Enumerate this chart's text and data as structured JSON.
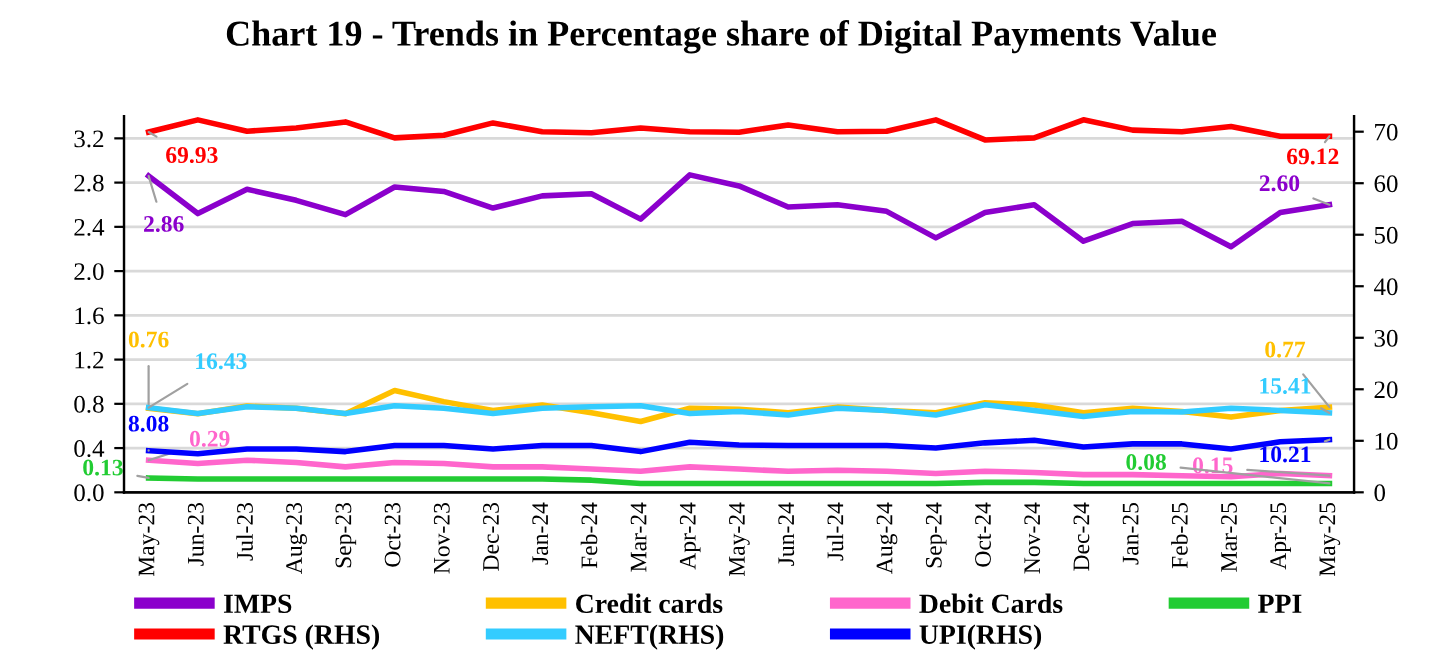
{
  "chart_data": {
    "type": "line",
    "title": "Chart 19 - Trends in Percentage share of Digital Payments Value",
    "categories": [
      "May-23",
      "Jun-23",
      "Jul-23",
      "Aug-23",
      "Sep-23",
      "Oct-23",
      "Nov-23",
      "Dec-23",
      "Jan-24",
      "Feb-24",
      "Mar-24",
      "Apr-24",
      "May-24",
      "Jun-24",
      "Jul-24",
      "Aug-24",
      "Sep-24",
      "Oct-24",
      "Nov-24",
      "Dec-24",
      "Jan-25",
      "Feb-25",
      "Mar-25",
      "Apr-25",
      "May-25"
    ],
    "series": [
      {
        "name": "IMPS",
        "color": "#8b00cc",
        "values": [
          2.86,
          2.52,
          2.74,
          2.64,
          2.51,
          2.76,
          2.72,
          2.57,
          2.68,
          2.7,
          2.47,
          2.87,
          2.77,
          2.58,
          2.6,
          2.54,
          2.3,
          2.53,
          2.6,
          2.27,
          2.43,
          2.45,
          2.22,
          2.53,
          2.6
        ],
        "value_labels": [
          "2.86",
          null,
          null,
          null,
          null,
          null,
          null,
          null,
          null,
          null,
          null,
          null,
          null,
          null,
          null,
          null,
          null,
          null,
          null,
          null,
          null,
          null,
          null,
          null,
          "2.60"
        ]
      },
      {
        "name": "Credit cards",
        "color": "#ffc000",
        "values": [
          0.76,
          0.71,
          0.78,
          0.76,
          0.71,
          0.92,
          0.82,
          0.74,
          0.79,
          0.72,
          0.64,
          0.76,
          0.75,
          0.72,
          0.77,
          0.74,
          0.72,
          0.81,
          0.79,
          0.72,
          0.76,
          0.73,
          0.68,
          0.74,
          0.77
        ],
        "value_labels": [
          "0.76",
          null,
          null,
          null,
          null,
          null,
          null,
          null,
          null,
          null,
          null,
          null,
          null,
          null,
          null,
          null,
          null,
          null,
          null,
          null,
          null,
          null,
          null,
          null,
          "0.77"
        ]
      },
      {
        "name": "Debit Cards",
        "color": "#ff66cc",
        "values": [
          0.29,
          0.26,
          0.29,
          0.27,
          0.23,
          0.27,
          0.26,
          0.23,
          0.23,
          0.21,
          0.19,
          0.23,
          0.21,
          0.19,
          0.2,
          0.19,
          0.17,
          0.19,
          0.18,
          0.16,
          0.16,
          0.15,
          0.14,
          0.17,
          0.15
        ],
        "value_labels": [
          "0.29",
          null,
          null,
          null,
          null,
          null,
          null,
          null,
          null,
          null,
          null,
          null,
          null,
          null,
          null,
          null,
          null,
          null,
          null,
          null,
          null,
          null,
          null,
          null,
          "0.15"
        ]
      },
      {
        "name": "PPI",
        "color": "#22cc33",
        "values": [
          0.13,
          0.12,
          0.12,
          0.12,
          0.12,
          0.12,
          0.12,
          0.12,
          0.12,
          0.11,
          0.08,
          0.08,
          0.08,
          0.08,
          0.08,
          0.08,
          0.08,
          0.09,
          0.09,
          0.08,
          0.08,
          0.08,
          0.08,
          0.08,
          0.08
        ],
        "value_labels": [
          "0.13",
          null,
          null,
          null,
          null,
          null,
          null,
          null,
          null,
          null,
          null,
          null,
          null,
          null,
          null,
          null,
          null,
          null,
          null,
          null,
          null,
          null,
          null,
          null,
          "0.08"
        ]
      },
      {
        "name": "RTGS (RHS)",
        "color": "#ff0000",
        "axis": "y2",
        "values": [
          69.93,
          72.3,
          70.1,
          70.7,
          71.9,
          68.8,
          69.3,
          71.7,
          70.0,
          69.8,
          70.7,
          70.0,
          69.9,
          71.3,
          70.0,
          70.1,
          72.3,
          68.4,
          68.8,
          72.3,
          70.3,
          70.0,
          71.0,
          69.1,
          69.12
        ],
        "value_labels": [
          "69.93",
          null,
          null,
          null,
          null,
          null,
          null,
          null,
          null,
          null,
          null,
          null,
          null,
          null,
          null,
          null,
          null,
          null,
          null,
          null,
          null,
          null,
          null,
          null,
          "69.12"
        ]
      },
      {
        "name": "NEFT(RHS)",
        "color": "#33ccff",
        "axis": "y2",
        "values": [
          16.43,
          15.3,
          16.6,
          16.3,
          15.3,
          16.8,
          16.3,
          15.3,
          16.3,
          16.6,
          16.8,
          15.3,
          15.7,
          15.0,
          16.3,
          15.9,
          15.0,
          17.0,
          15.9,
          14.7,
          15.7,
          15.6,
          16.3,
          15.9,
          15.41
        ],
        "value_labels": [
          "16.43",
          null,
          null,
          null,
          null,
          null,
          null,
          null,
          null,
          null,
          null,
          null,
          null,
          null,
          null,
          null,
          null,
          null,
          null,
          null,
          null,
          null,
          null,
          null,
          "15.41"
        ]
      },
      {
        "name": "UPI(RHS)",
        "color": "#0000ff",
        "axis": "y2",
        "values": [
          8.08,
          7.5,
          8.4,
          8.4,
          7.9,
          9.1,
          9.1,
          8.4,
          9.1,
          9.1,
          7.9,
          9.7,
          9.2,
          9.1,
          9.1,
          9.1,
          8.6,
          9.6,
          10.1,
          8.8,
          9.4,
          9.4,
          8.4,
          9.8,
          10.21
        ],
        "value_labels": [
          "8.08",
          null,
          null,
          null,
          null,
          null,
          null,
          null,
          null,
          null,
          null,
          null,
          null,
          null,
          null,
          null,
          null,
          null,
          null,
          null,
          null,
          null,
          null,
          null,
          "10.21"
        ]
      }
    ],
    "ylim": [
      0,
      3.4
    ],
    "yticks": [
      {
        "value": 0,
        "label": "0.0"
      },
      {
        "value": 0.4,
        "label": "0.4"
      },
      {
        "value": 0.8,
        "label": "0.8"
      },
      {
        "value": 1.2,
        "label": "1.2"
      },
      {
        "value": 1.6,
        "label": "1.6"
      },
      {
        "value": 2.0,
        "label": "2.0"
      },
      {
        "value": 2.4,
        "label": "2.4"
      },
      {
        "value": 2.8,
        "label": "2.8"
      },
      {
        "value": 3.2,
        "label": "3.2"
      }
    ],
    "y2lim": [
      0,
      73
    ],
    "y2ticks": [
      0,
      10,
      20,
      30,
      40,
      50,
      60,
      70
    ],
    "grid": "y",
    "legend": "bottom",
    "marker": "none",
    "line_style": "solid"
  }
}
